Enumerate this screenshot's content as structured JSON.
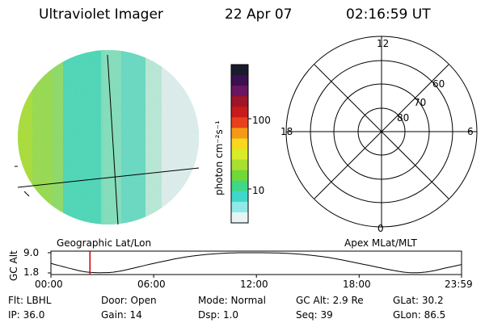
{
  "header": {
    "instrument": "Ultraviolet Imager",
    "date": "22 Apr 07",
    "time": "02:16:59 UT"
  },
  "colorbar": {
    "unit_label": "photon cm⁻²s⁻¹",
    "ticks": [
      "100",
      "10"
    ],
    "colors": [
      "#1a1a2e",
      "#3a1050",
      "#6a1560",
      "#a01525",
      "#c81a1a",
      "#e8401a",
      "#f59a14",
      "#f7d81e",
      "#d8ec28",
      "#a8e030",
      "#70d838",
      "#40d888",
      "#40d8c8",
      "#90e8e8",
      "#e8f4f4"
    ]
  },
  "left_panel": {
    "caption": "Geographic Lat/Lon"
  },
  "polar_plot": {
    "caption": "Apex MLat/MLT",
    "mlt_labels": {
      "top": "12",
      "left": "18",
      "right": "6",
      "bottom": "0"
    },
    "lat_labels": [
      "60",
      "70",
      "80"
    ]
  },
  "altitude_strip": {
    "ylabel": "GC Alt",
    "yticks": [
      "9.0",
      "1.8"
    ],
    "xticks": [
      "00:00",
      "06:00",
      "12:00",
      "18:00",
      "23:59"
    ],
    "current_time_hours": 2.28,
    "marker_color": "#cc0000"
  },
  "chart_data": {
    "type": "line",
    "title": "",
    "xlabel": "",
    "ylabel": "GC Alt",
    "x": [
      0,
      1,
      2,
      3,
      4,
      6,
      8,
      10,
      12,
      14,
      16,
      18,
      20,
      21,
      22,
      23,
      23.98
    ],
    "values": [
      5.2,
      3.6,
      2.2,
      1.9,
      2.4,
      5.2,
      7.6,
      8.8,
      9.0,
      8.7,
      7.5,
      5.2,
      2.7,
      1.9,
      2.2,
      3.5,
      4.8
    ],
    "xlim": [
      0,
      23.98
    ],
    "ylim": [
      1.8,
      9.0
    ]
  },
  "info": {
    "filter": "Flt: LBHL",
    "door": "Door: Open",
    "mode": "Mode: Normal",
    "gc_alt": "GC Alt: 2.9 Re",
    "glat": "GLat: 30.2",
    "ip": "IP: 36.0",
    "gain": "Gain: 14",
    "dsp": "Dsp:   1.0",
    "seq": "Seq: 39",
    "glon": "GLon: 86.5"
  }
}
